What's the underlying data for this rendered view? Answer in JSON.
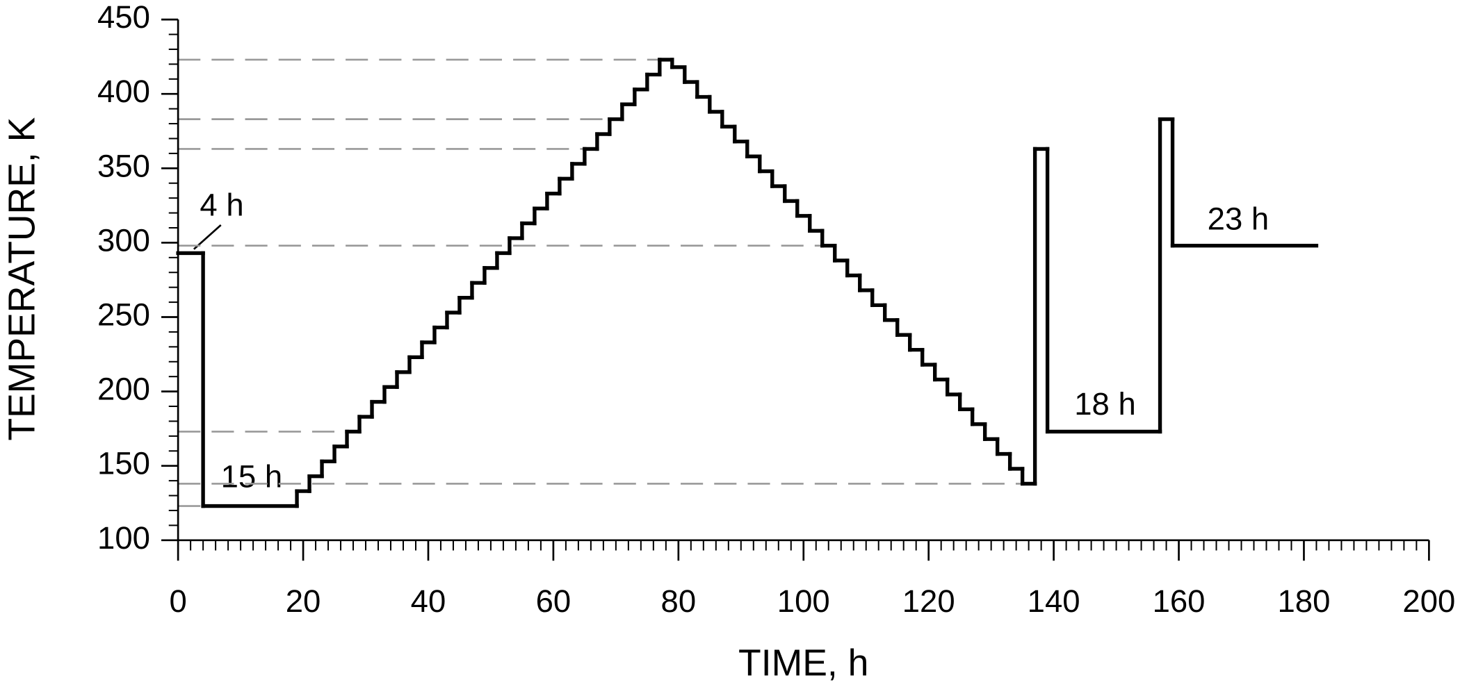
{
  "chart_data": {
    "type": "step",
    "xlabel": "TIME, h",
    "ylabel": "TEMPERATURE, K",
    "x": [
      0,
      4,
      19,
      21,
      23,
      25,
      27,
      29,
      31,
      33,
      35,
      37,
      39,
      41,
      43,
      45,
      47,
      49,
      51,
      53,
      55,
      57,
      59,
      61,
      63,
      65,
      67,
      69,
      71,
      73,
      75,
      77,
      79,
      81,
      83,
      85,
      87,
      89,
      91,
      93,
      95,
      97,
      99,
      101,
      103,
      105,
      107,
      109,
      111,
      113,
      115,
      117,
      119,
      121,
      123,
      125,
      127,
      129,
      131,
      133,
      135,
      137,
      139,
      157,
      159
    ],
    "x_end": [
      4,
      19,
      21,
      23,
      25,
      27,
      29,
      31,
      33,
      35,
      37,
      39,
      41,
      43,
      45,
      47,
      49,
      51,
      53,
      55,
      57,
      59,
      61,
      63,
      65,
      67,
      69,
      71,
      73,
      75,
      77,
      79,
      81,
      83,
      85,
      87,
      89,
      91,
      93,
      95,
      97,
      99,
      101,
      103,
      105,
      107,
      109,
      111,
      113,
      115,
      117,
      119,
      121,
      123,
      125,
      127,
      129,
      131,
      133,
      135,
      137,
      139,
      157,
      159,
      182
    ],
    "values": [
      293,
      123,
      133,
      143,
      153,
      163,
      173,
      183,
      193,
      203,
      213,
      223,
      233,
      243,
      253,
      263,
      273,
      283,
      293,
      303,
      313,
      323,
      333,
      343,
      353,
      363,
      373,
      383,
      393,
      403,
      413,
      423,
      418,
      408,
      398,
      388,
      378,
      368,
      358,
      348,
      338,
      328,
      318,
      308,
      298,
      288,
      278,
      268,
      258,
      248,
      238,
      228,
      218,
      208,
      198,
      188,
      178,
      168,
      158,
      148,
      138,
      363,
      173,
      383,
      298
    ],
    "color": "#000000",
    "reference_lines": [
      123,
      138,
      173,
      298,
      363,
      383,
      423
    ],
    "reference_color": "#999999",
    "xlim": [
      0,
      200
    ],
    "xticks": [
      0,
      20,
      40,
      60,
      80,
      100,
      120,
      140,
      160,
      180,
      200
    ],
    "x_minor_step": 2,
    "ylim": [
      100,
      450
    ],
    "yticks": [
      100,
      150,
      200,
      250,
      300,
      350,
      400,
      450
    ],
    "y_minor_step": 10,
    "annotations": [
      "4 h",
      "15 h",
      "18 h",
      "23 h"
    ]
  }
}
